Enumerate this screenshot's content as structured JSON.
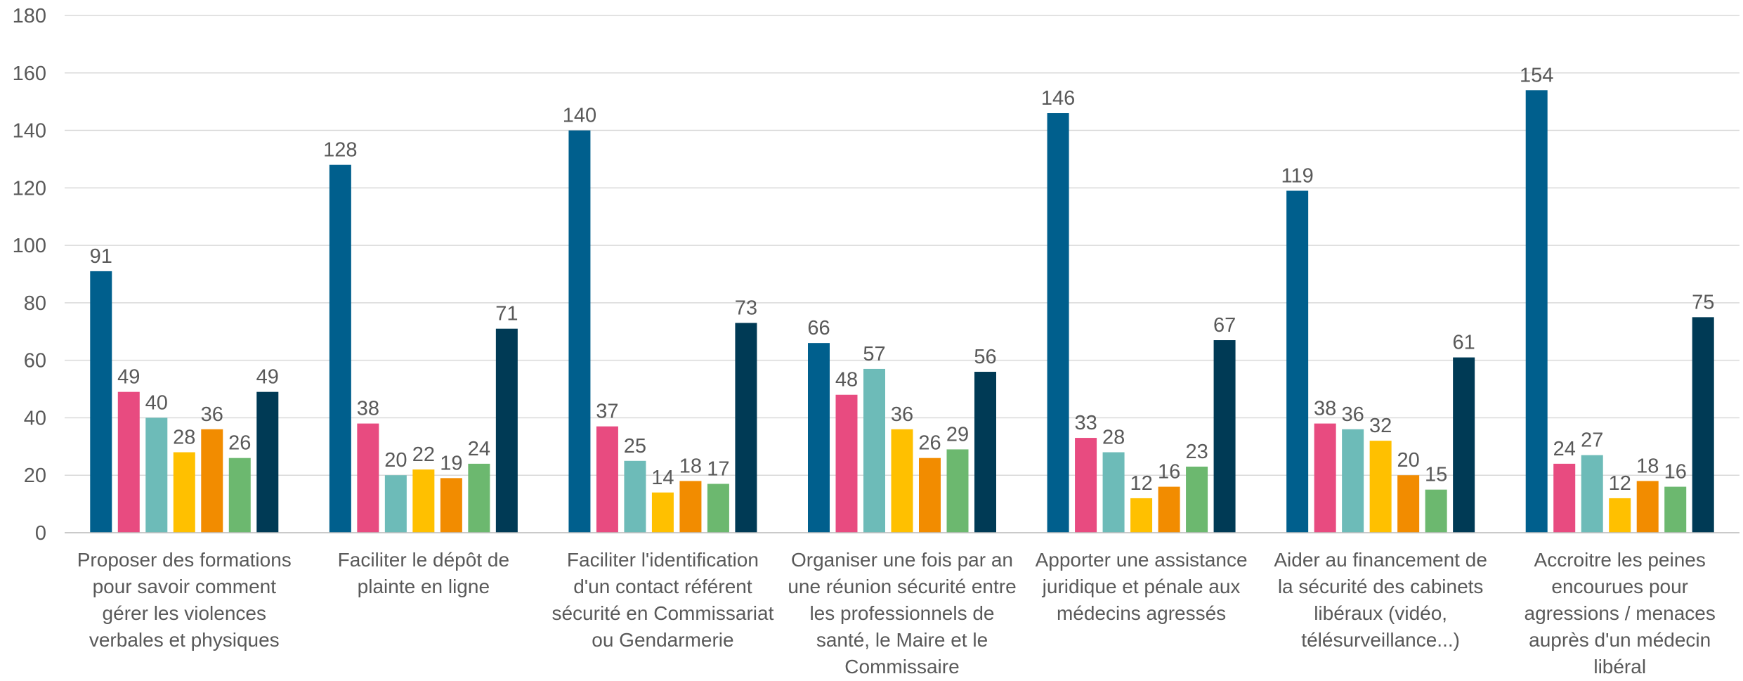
{
  "chart_data": {
    "type": "bar",
    "categories": [
      "Proposer des formations pour savoir comment gérer les violences verbales et physiques",
      "Faciliter le dépôt de plainte en ligne",
      "Faciliter l'identification d'un contact référent sécurité en Commissariat ou Gendarmerie",
      "Organiser une fois par an une réunion sécurité entre les professionnels de santé, le Maire et le Commissaire",
      "Apporter une assistance juridique et pénale aux médecins agressés",
      "Aider au financement de la sécurité des cabinets libéraux (vidéo, télésurveillance...)",
      "Accroitre les peines encourues pour agressions / menaces auprès d'un médecin libéral"
    ],
    "series": [
      {
        "color": "#005f8d",
        "values": [
          91,
          128,
          140,
          66,
          146,
          119,
          154
        ]
      },
      {
        "color": "#e84b80",
        "values": [
          49,
          38,
          37,
          48,
          33,
          38,
          24
        ]
      },
      {
        "color": "#6dbbb8",
        "values": [
          40,
          20,
          25,
          57,
          28,
          36,
          27
        ]
      },
      {
        "color": "#ffc000",
        "values": [
          28,
          22,
          14,
          36,
          12,
          32,
          12
        ]
      },
      {
        "color": "#f28c00",
        "values": [
          36,
          19,
          18,
          26,
          16,
          20,
          18
        ]
      },
      {
        "color": "#6cb86f",
        "values": [
          26,
          24,
          17,
          29,
          23,
          15,
          16
        ]
      },
      {
        "color": "#003a55",
        "values": [
          49,
          71,
          73,
          56,
          67,
          61,
          75
        ]
      }
    ],
    "ylim": [
      0,
      180
    ],
    "yticks": [
      0,
      20,
      40,
      60,
      80,
      100,
      120,
      140,
      160,
      180
    ],
    "grid": true
  }
}
